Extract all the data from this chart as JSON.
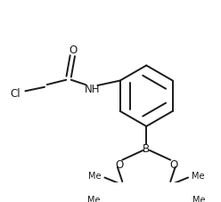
{
  "bg_color": "#ffffff",
  "line_color": "#1a1a1a",
  "line_width": 1.4,
  "font_size": 8.5,
  "figsize": [
    2.48,
    2.28
  ],
  "dpi": 100,
  "xlim": [
    0,
    248
  ],
  "ylim": [
    0,
    228
  ]
}
